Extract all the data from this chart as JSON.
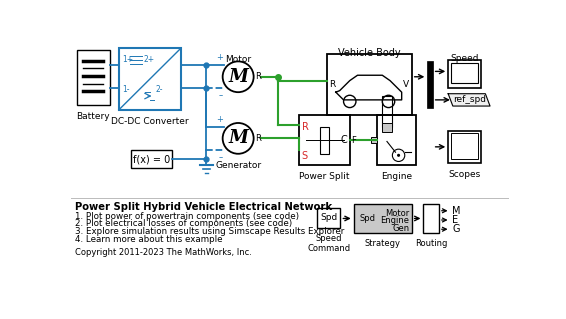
{
  "title": "Power Split Hybrid Vehicle Electrical Network",
  "bg_color": "#ffffff",
  "blue": "#1F77B4",
  "green": "#2ca02c",
  "black": "#000000",
  "red": "#d62728",
  "light_gray": "#C8C8C8",
  "bullet1": "1. Plot power of powertrain components (see code)",
  "bullet2": "2. Plot electrical losses of components (see code)",
  "bullet3": "3. Explore simulation results using Simscape Results Explorer",
  "bullet4": "4. Learn more about this example",
  "copyright": "Copyright 2011-2023 The MathWorks, Inc."
}
